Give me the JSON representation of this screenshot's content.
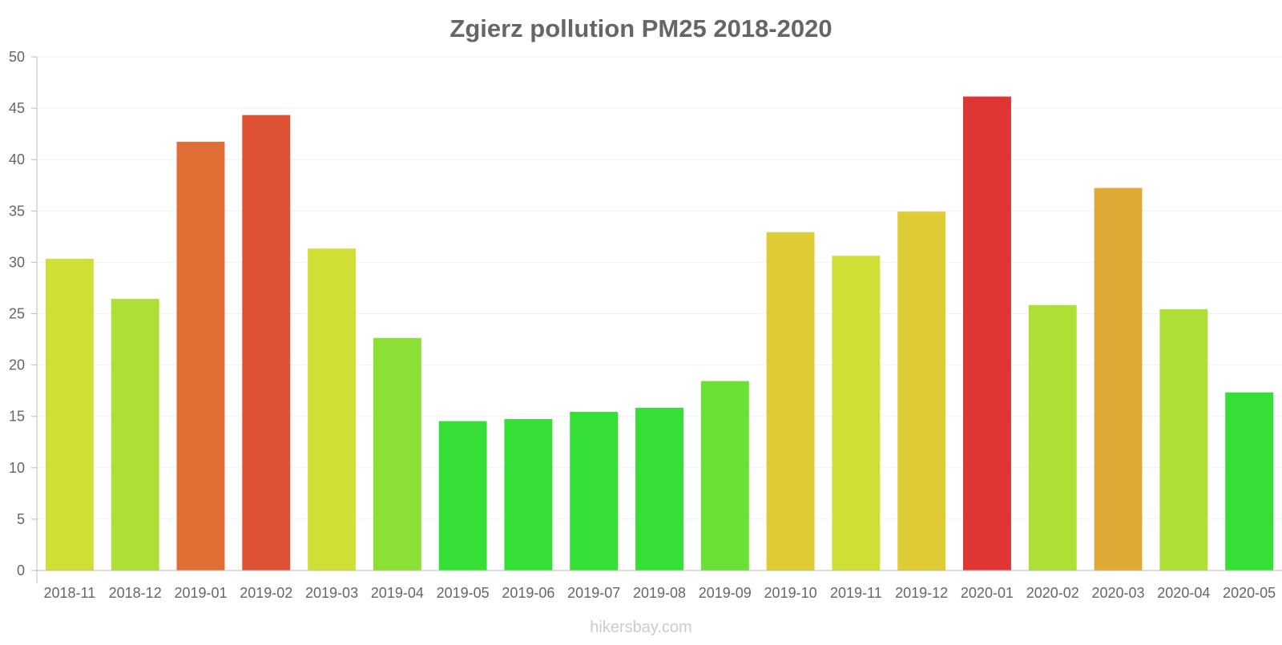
{
  "chart_data": {
    "type": "bar",
    "title": "Zgierz pollution PM25 2018-2020",
    "xlabel": "",
    "ylabel": "",
    "ylim": [
      0,
      50
    ],
    "yticks": [
      0,
      5,
      10,
      15,
      20,
      25,
      30,
      35,
      40,
      45,
      50
    ],
    "grid": true,
    "legend": "none",
    "categories": [
      "2018-11",
      "2018-12",
      "2019-01",
      "2019-02",
      "2019-03",
      "2019-04",
      "2019-05",
      "2019-06",
      "2019-07",
      "2019-08",
      "2019-09",
      "2019-10",
      "2019-11",
      "2019-12",
      "2020-01",
      "2020-02",
      "2020-03",
      "2020-04",
      "2020-05"
    ],
    "values": [
      30.3,
      26.4,
      41.7,
      44.3,
      31.3,
      22.6,
      14.5,
      14.7,
      15.4,
      15.8,
      18.4,
      32.9,
      30.6,
      34.9,
      46.1,
      25.8,
      37.2,
      25.4,
      17.3
    ],
    "bar_colors": [
      "#cfdf35",
      "#addf35",
      "#df6f35",
      "#df5135",
      "#cfdf35",
      "#8bdf35",
      "#35df35",
      "#35df35",
      "#35df35",
      "#35df35",
      "#6adf35",
      "#dfcb35",
      "#cfdf35",
      "#dfcb35",
      "#df3535",
      "#addf35",
      "#dfa935",
      "#addf35",
      "#35df35"
    ]
  },
  "watermark": "hikersbay.com"
}
